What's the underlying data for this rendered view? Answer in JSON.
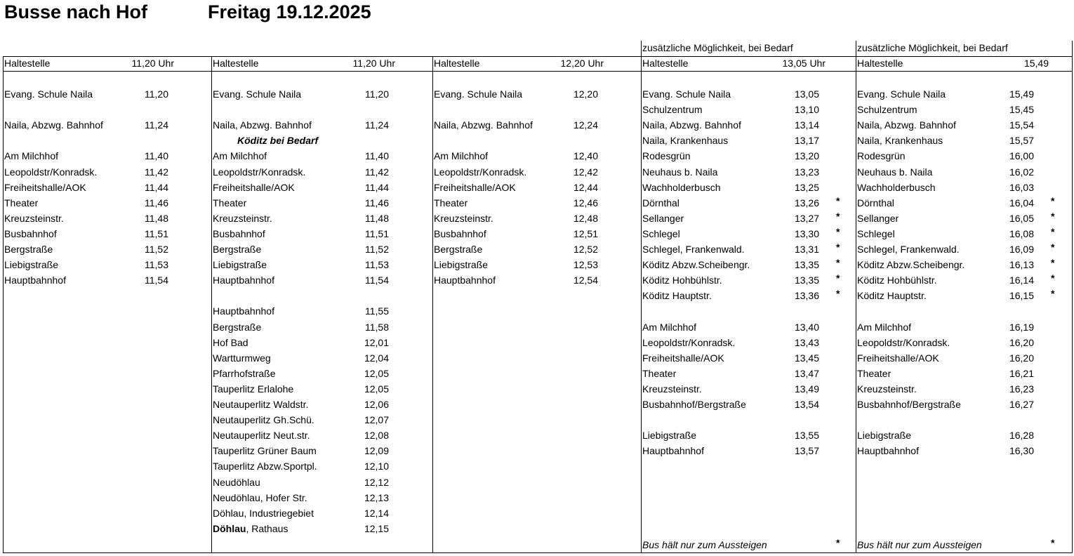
{
  "header": {
    "title": "Busse nach Hof",
    "date": "Freitag 19.12.2025"
  },
  "columns": [
    {
      "stop_label": "Haltestelle",
      "time_label": "11,20 Uhr",
      "rows": [
        {
          "stop": "Evang. Schule Naila",
          "time": "11,20"
        },
        null,
        {
          "stop": "Naila, Abzwg. Bahnhof",
          "time": "11,24"
        },
        null,
        {
          "stop": "Am Milchhof",
          "time": "11,40"
        },
        {
          "stop": "Leopoldstr/Konradsk.",
          "time": "11,42"
        },
        {
          "stop": "Freiheitshalle/AOK",
          "time": "11,44"
        },
        {
          "stop": "Theater",
          "time": "11,46"
        },
        {
          "stop": "Kreuzsteinstr.",
          "time": "11,48"
        },
        {
          "stop": "Busbahnhof",
          "time": "11,51"
        },
        {
          "stop": "Bergstraße",
          "time": "11,52"
        },
        {
          "stop": "Liebigstraße",
          "time": "11,53"
        },
        {
          "stop": "Hauptbahnhof",
          "time": "11,54"
        }
      ]
    },
    {
      "stop_label": "Haltestelle",
      "time_label": "11,20 Uhr",
      "rows": [
        {
          "stop": "Evang. Schule Naila",
          "time": "11,20"
        },
        null,
        {
          "stop": "Naila, Abzwg. Bahnhof",
          "time": "11,24"
        },
        {
          "note": "Köditz bei Bedarf"
        },
        {
          "stop": "Am Milchhof",
          "time": "11,40"
        },
        {
          "stop": "Leopoldstr/Konradsk.",
          "time": "11,42"
        },
        {
          "stop": "Freiheitshalle/AOK",
          "time": "11,44"
        },
        {
          "stop": "Theater",
          "time": "11,46"
        },
        {
          "stop": "Kreuzsteinstr.",
          "time": "11,48"
        },
        {
          "stop": "Busbahnhof",
          "time": "11,51"
        },
        {
          "stop": "Bergstraße",
          "time": "11,52"
        },
        {
          "stop": "Liebigstraße",
          "time": "11,53"
        },
        {
          "stop": "Hauptbahnhof",
          "time": "11,54"
        },
        null,
        {
          "stop": "Hauptbahnhof",
          "time": "11,55"
        },
        {
          "stop": "Bergstraße",
          "time": "11,58"
        },
        {
          "stop": "Hof Bad",
          "time": "12,01"
        },
        {
          "stop": "Wartturmweg",
          "time": "12,04"
        },
        {
          "stop": "Pfarrhofstraße",
          "time": "12,05"
        },
        {
          "stop": "Tauperlitz Erlalohe",
          "time": "12,05"
        },
        {
          "stop": "Neutauperlitz Waldstr.",
          "time": "12,06"
        },
        {
          "stop": "Neutauperlitz Gh.Schü.",
          "time": "12,07"
        },
        {
          "stop": "Neutauperlitz Neut.str.",
          "time": "12,08"
        },
        {
          "stop": "Tauperlitz Grüner Baum",
          "time": "12,09"
        },
        {
          "stop": "Tauperlitz Abzw.Sportpl.",
          "time": "12,10"
        },
        {
          "stop": "Neudöhlau",
          "time": "12,12"
        },
        {
          "stop": "Neudöhlau, Hofer Str.",
          "time": "12,13"
        },
        {
          "stop": "Döhlau, Industriegebiet",
          "time": "12,14"
        },
        {
          "stop_bold": "Döhlau",
          "stop": ", Rathaus",
          "time": "12,15"
        }
      ]
    },
    {
      "stop_label": "Haltestelle",
      "time_label": "12,20 Uhr",
      "rows": [
        {
          "stop": "Evang. Schule Naila",
          "time": "12,20"
        },
        null,
        {
          "stop": "Naila, Abzwg. Bahnhof",
          "time": "12,24"
        },
        null,
        {
          "stop": "Am Milchhof",
          "time": "12,40"
        },
        {
          "stop": "Leopoldstr/Konradsk.",
          "time": "12,42"
        },
        {
          "stop": "Freiheitshalle/AOK",
          "time": "12,44"
        },
        {
          "stop": "Theater",
          "time": "12,46"
        },
        {
          "stop": "Kreuzsteinstr.",
          "time": "12,48"
        },
        {
          "stop": "Busbahnhof",
          "time": "12,51"
        },
        {
          "stop": "Bergstraße",
          "time": "12,52"
        },
        {
          "stop": "Liebigstraße",
          "time": "12,53"
        },
        {
          "stop": "Hauptbahnhof",
          "time": "12,54"
        }
      ]
    },
    {
      "note": "zusätzliche Möglichkeit, bei Bedarf",
      "stop_label": "Haltestelle",
      "time_label": "13,05 Uhr",
      "rows": [
        {
          "stop": "Evang. Schule Naila",
          "time": "13,05"
        },
        {
          "stop": "Schulzentrum",
          "time": "13,10"
        },
        {
          "stop": "Naila, Abzwg. Bahnhof",
          "time": "13,14"
        },
        {
          "stop": "Naila, Krankenhaus",
          "time": "13,17"
        },
        {
          "stop": "Rodesgrün",
          "time": "13,20"
        },
        {
          "stop": "Neuhaus b. Naila",
          "time": "13,23"
        },
        {
          "stop": "Wachholderbusch",
          "time": "13,25"
        },
        {
          "stop": "Dörnthal",
          "time": "13,26",
          "flag": "*"
        },
        {
          "stop": "Sellanger",
          "time": "13,27",
          "flag": "*"
        },
        {
          "stop": "Schlegel",
          "time": "13,30",
          "flag": "*"
        },
        {
          "stop": "Schlegel, Frankenwald.",
          "time": "13,31",
          "flag": "*"
        },
        {
          "stop": "Köditz Abzw.Scheibengr.",
          "time": "13,35",
          "flag": "*"
        },
        {
          "stop": "Köditz Hohbühlstr.",
          "time": "13,35",
          "flag": "*"
        },
        {
          "stop": "Köditz Hauptstr.",
          "time": "13,36",
          "flag": "*"
        },
        null,
        {
          "stop": "Am Milchhof",
          "time": "13,40"
        },
        {
          "stop": "Leopoldstr/Konradsk.",
          "time": "13,43"
        },
        {
          "stop": "Freiheitshalle/AOK",
          "time": "13,45"
        },
        {
          "stop": "Theater",
          "time": "13,47"
        },
        {
          "stop": "Kreuzsteinstr.",
          "time": "13,49"
        },
        {
          "stop": "Busbahnhof/Bergstraße",
          "time": "13,54"
        },
        null,
        {
          "stop": "Liebigstraße",
          "time": "13,55"
        },
        {
          "stop": "Hauptbahnhof",
          "time": "13,57"
        }
      ],
      "footer": {
        "text": "Bus hält nur zum Aussteigen",
        "flag": "*"
      }
    },
    {
      "note": "zusätzliche Möglichkeit, bei Bedarf",
      "stop_label": "Haltestelle",
      "time_label": "15,49",
      "rows": [
        {
          "stop": "Evang. Schule Naila",
          "time": "15,49"
        },
        {
          "stop": "Schulzentrum",
          "time": "15,45"
        },
        {
          "stop": "Naila, Abzwg. Bahnhof",
          "time": "15,54"
        },
        {
          "stop": "Naila, Krankenhaus",
          "time": "15,57"
        },
        {
          "stop": "Rodesgrün",
          "time": "16,00"
        },
        {
          "stop": "Neuhaus b. Naila",
          "time": "16,02"
        },
        {
          "stop": "Wachholderbusch",
          "time": "16,03"
        },
        {
          "stop": "Dörnthal",
          "time": "16,04",
          "flag": "*"
        },
        {
          "stop": "Sellanger",
          "time": "16,05",
          "flag": "*"
        },
        {
          "stop": "Schlegel",
          "time": "16,08",
          "flag": "*"
        },
        {
          "stop": "Schlegel, Frankenwald.",
          "time": "16,09",
          "flag": "*"
        },
        {
          "stop": "Köditz Abzw.Scheibengr.",
          "time": "16,13",
          "flag": "*"
        },
        {
          "stop": "Köditz Hohbühlstr.",
          "time": "16,14",
          "flag": "*"
        },
        {
          "stop": "Köditz Hauptstr.",
          "time": "16,15",
          "flag": "*"
        },
        null,
        {
          "stop": "Am Milchhof",
          "time": "16,19"
        },
        {
          "stop": "Leopoldstr/Konradsk.",
          "time": "16,20"
        },
        {
          "stop": "Freiheitshalle/AOK",
          "time": "16,20"
        },
        {
          "stop": "Theater",
          "time": "16,21"
        },
        {
          "stop": "Kreuzsteinstr.",
          "time": "16,23"
        },
        {
          "stop": "Busbahnhof/Bergstraße",
          "time": "16,27"
        },
        null,
        {
          "stop": "Liebigstraße",
          "time": "16,28"
        },
        {
          "stop": "Hauptbahnhof",
          "time": "16,30"
        }
      ],
      "footer": {
        "text": "Bus hält nur zum Aussteigen",
        "flag": "*"
      }
    }
  ]
}
